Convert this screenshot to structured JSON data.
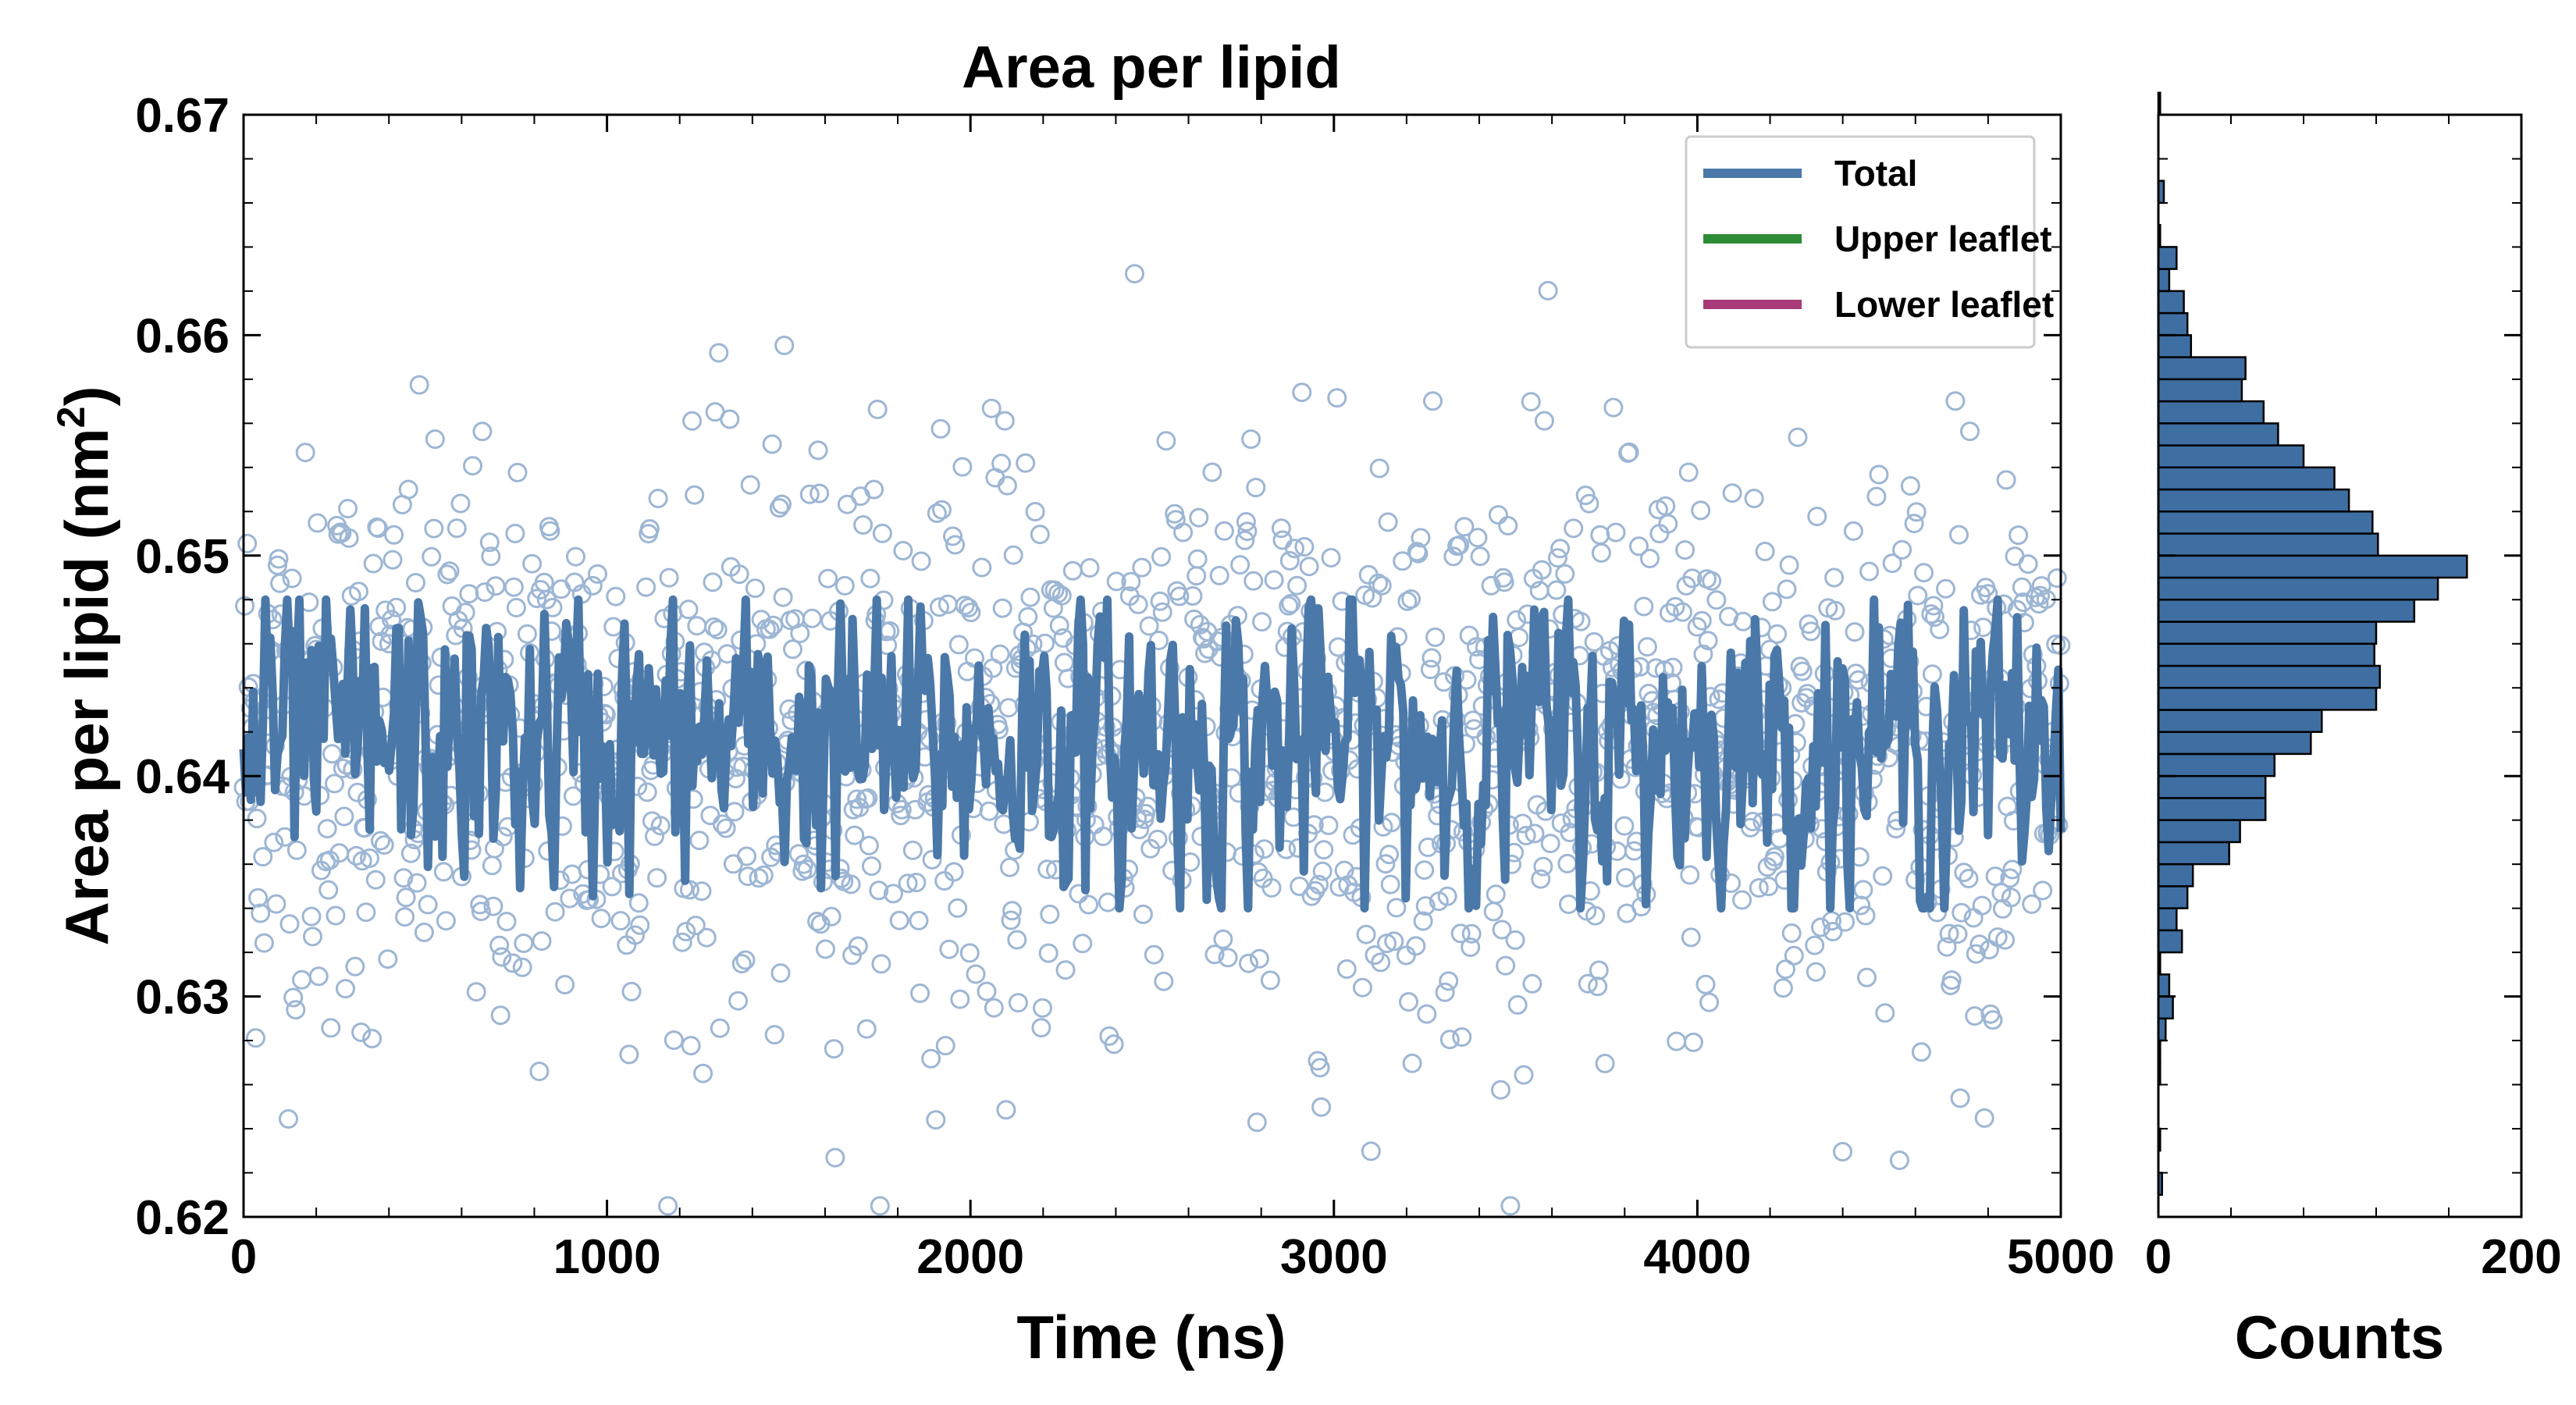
{
  "chart_data": [
    {
      "type": "line",
      "title": "Area per lipid",
      "xlabel": "Time (ns)",
      "ylabel_main": "Area per lipid (nm",
      "ylabel_sup": "2",
      "ylabel_close": ")",
      "xlim": [
        0,
        5000
      ],
      "ylim": [
        0.62,
        0.67
      ],
      "xticks": [
        0,
        1000,
        2000,
        3000,
        4000,
        5000
      ],
      "xtick_labels": [
        "0",
        "1000",
        "2000",
        "3000",
        "4000",
        "5000"
      ],
      "yticks": [
        0.62,
        0.63,
        0.64,
        0.65,
        0.66,
        0.67
      ],
      "ytick_labels": [
        "0.62",
        "0.63",
        "0.64",
        "0.65",
        "0.66",
        "0.67"
      ],
      "grid": false,
      "legend_position": "top-right",
      "series": [
        {
          "name": "Total",
          "color": "#4a78a8",
          "style": "line+scatter",
          "mean": 0.6415,
          "line_amplitude": 0.0035,
          "scatter_sd": 0.0065
        },
        {
          "name": "Upper leaflet",
          "color": "#2e8b36"
        },
        {
          "name": "Lower leaflet",
          "color": "#a83a78"
        }
      ]
    },
    {
      "type": "bar",
      "orientation": "horizontal",
      "xlabel": "Counts",
      "xlim": [
        0,
        200
      ],
      "xticks": [
        0,
        200
      ],
      "xtick_labels": [
        "0",
        "200"
      ],
      "ylim": [
        0.62,
        0.67
      ],
      "bin_width": 0.001,
      "bin_start": 0.621,
      "color": "#3f6fa2",
      "counts": [
        2,
        0,
        1,
        0,
        0,
        1,
        1,
        4,
        8,
        6,
        1,
        13,
        10,
        16,
        19,
        39,
        45,
        59,
        59,
        64,
        84,
        90,
        120,
        122,
        119,
        120,
        141,
        154,
        170,
        121,
        118,
        105,
        97,
        80,
        66,
        58,
        46,
        48,
        18,
        16,
        14,
        6,
        10,
        1,
        0,
        3,
        0,
        0,
        0,
        1
      ]
    }
  ]
}
